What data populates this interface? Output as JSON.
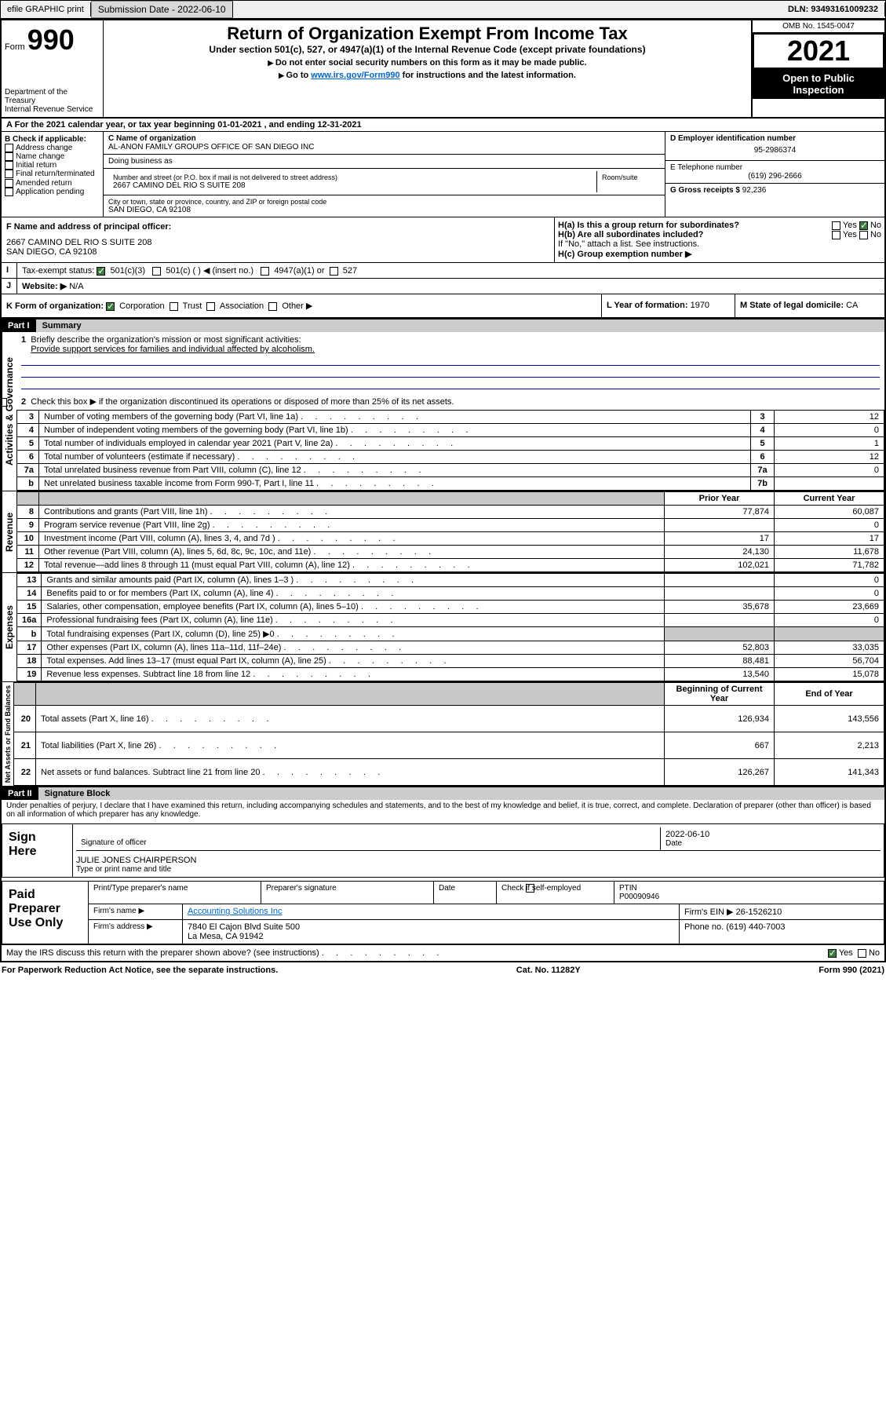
{
  "header": {
    "efile": "efile GRAPHIC print",
    "submission_label": "Submission Date - 2022-06-10",
    "dln_label": "DLN: 93493161009232"
  },
  "form_head": {
    "form_label": "Form",
    "form_number": "990",
    "dept": "Department of the Treasury",
    "irs": "Internal Revenue Service",
    "title": "Return of Organization Exempt From Income Tax",
    "subtitle": "Under section 501(c), 527, or 4947(a)(1) of the Internal Revenue Code (except private foundations)",
    "note1": "Do not enter social security numbers on this form as it may be made public.",
    "note2_pre": "Go to ",
    "note2_link": "www.irs.gov/Form990",
    "note2_post": " for instructions and the latest information.",
    "omb": "OMB No. 1545-0047",
    "year": "2021",
    "open": "Open to Public Inspection"
  },
  "line_a": "For the 2021 calendar year, or tax year beginning 01-01-2021    , and ending 12-31-2021",
  "box_b": {
    "label": "B Check if applicable:",
    "items": [
      "Address change",
      "Name change",
      "Initial return",
      "Final return/terminated",
      "Amended return",
      "Application pending"
    ]
  },
  "box_c": {
    "name_label": "C Name of organization",
    "name": "AL-ANON FAMILY GROUPS OFFICE OF SAN DIEGO INC",
    "dba": "Doing business as",
    "street_label": "Number and street (or P.O. box if mail is not delivered to street address)",
    "room": "Room/suite",
    "street": "2667 CAMINO DEL RIO S SUITE 208",
    "city_label": "City or town, state or province, country, and ZIP or foreign postal code",
    "city": "SAN DIEGO, CA  92108"
  },
  "box_d": {
    "label": "D Employer identification number",
    "value": "95-2986374"
  },
  "box_e": {
    "label": "E Telephone number",
    "value": "(619) 296-2666"
  },
  "box_g": {
    "label": "G Gross receipts $",
    "value": "92,236"
  },
  "box_f": {
    "label": "F  Name and address of principal officer:",
    "addr1": "2667 CAMINO DEL RIO S SUITE 208",
    "addr2": "SAN DIEGO, CA  92108"
  },
  "box_h": {
    "ha": "H(a)  Is this a group return for subordinates?",
    "hb": "H(b)  Are all subordinates included?",
    "hnote": "If \"No,\" attach a list. See instructions.",
    "hc": "H(c)  Group exemption number ▶",
    "yes": "Yes",
    "no": "No"
  },
  "line_i": {
    "label": "Tax-exempt status:",
    "opts": [
      "501(c)(3)",
      "501(c) (  ) ◀ (insert no.)",
      "4947(a)(1) or",
      "527"
    ]
  },
  "line_j": {
    "label": "Website: ▶",
    "value": "N/A"
  },
  "line_k": {
    "label": "K Form of organization:",
    "opts": [
      "Corporation",
      "Trust",
      "Association",
      "Other ▶"
    ]
  },
  "line_l": {
    "label": "L Year of formation:",
    "value": "1970"
  },
  "line_m": {
    "label": "M State of legal domicile:",
    "value": "CA"
  },
  "part1": {
    "header": "Part I",
    "title": "Summary",
    "q1": "Briefly describe the organization's mission or most significant activities:",
    "q1a": "Provide support services for families and individual affected by alcoholism.",
    "q2": "Check this box ▶        if the organization discontinued its operations or disposed of more than 25% of its net assets.",
    "sections": {
      "gov": "Activities & Governance",
      "rev": "Revenue",
      "exp": "Expenses",
      "net": "Net Assets or Fund Balances"
    },
    "headers": {
      "prior": "Prior Year",
      "current": "Current Year",
      "begin": "Beginning of Current Year",
      "end": "End of Year"
    },
    "rows_gov": [
      {
        "n": "3",
        "t": "Number of voting members of the governing body (Part VI, line 1a)",
        "box": "3",
        "v": "12"
      },
      {
        "n": "4",
        "t": "Number of independent voting members of the governing body (Part VI, line 1b)",
        "box": "4",
        "v": "0"
      },
      {
        "n": "5",
        "t": "Total number of individuals employed in calendar year 2021 (Part V, line 2a)",
        "box": "5",
        "v": "1"
      },
      {
        "n": "6",
        "t": "Total number of volunteers (estimate if necessary)",
        "box": "6",
        "v": "12"
      },
      {
        "n": "7a",
        "t": "Total unrelated business revenue from Part VIII, column (C), line 12",
        "box": "7a",
        "v": "0"
      },
      {
        "n": "b",
        "t": "Net unrelated business taxable income from Form 990-T, Part I, line 11",
        "box": "7b",
        "v": ""
      }
    ],
    "rows_rev": [
      {
        "n": "8",
        "t": "Contributions and grants (Part VIII, line 1h)",
        "p": "77,874",
        "c": "60,087"
      },
      {
        "n": "9",
        "t": "Program service revenue (Part VIII, line 2g)",
        "p": "",
        "c": "0"
      },
      {
        "n": "10",
        "t": "Investment income (Part VIII, column (A), lines 3, 4, and 7d )",
        "p": "17",
        "c": "17"
      },
      {
        "n": "11",
        "t": "Other revenue (Part VIII, column (A), lines 5, 6d, 8c, 9c, 10c, and 11e)",
        "p": "24,130",
        "c": "11,678"
      },
      {
        "n": "12",
        "t": "Total revenue—add lines 8 through 11 (must equal Part VIII, column (A), line 12)",
        "p": "102,021",
        "c": "71,782"
      }
    ],
    "rows_exp": [
      {
        "n": "13",
        "t": "Grants and similar amounts paid (Part IX, column (A), lines 1–3 )",
        "p": "",
        "c": "0"
      },
      {
        "n": "14",
        "t": "Benefits paid to or for members (Part IX, column (A), line 4)",
        "p": "",
        "c": "0"
      },
      {
        "n": "15",
        "t": "Salaries, other compensation, employee benefits (Part IX, column (A), lines 5–10)",
        "p": "35,678",
        "c": "23,669"
      },
      {
        "n": "16a",
        "t": "Professional fundraising fees (Part IX, column (A), line 11e)",
        "p": "",
        "c": "0"
      },
      {
        "n": "b",
        "t": "Total fundraising expenses (Part IX, column (D), line 25) ▶0",
        "p": "shade",
        "c": "shade"
      },
      {
        "n": "17",
        "t": "Other expenses (Part IX, column (A), lines 11a–11d, 11f–24e)",
        "p": "52,803",
        "c": "33,035"
      },
      {
        "n": "18",
        "t": "Total expenses. Add lines 13–17 (must equal Part IX, column (A), line 25)",
        "p": "88,481",
        "c": "56,704"
      },
      {
        "n": "19",
        "t": "Revenue less expenses. Subtract line 18 from line 12",
        "p": "13,540",
        "c": "15,078"
      }
    ],
    "rows_net": [
      {
        "n": "20",
        "t": "Total assets (Part X, line 16)",
        "p": "126,934",
        "c": "143,556"
      },
      {
        "n": "21",
        "t": "Total liabilities (Part X, line 26)",
        "p": "667",
        "c": "2,213"
      },
      {
        "n": "22",
        "t": "Net assets or fund balances. Subtract line 21 from line 20",
        "p": "126,267",
        "c": "141,343"
      }
    ]
  },
  "part2": {
    "header": "Part II",
    "title": "Signature Block",
    "decl": "Under penalties of perjury, I declare that I have examined this return, including accompanying schedules and statements, and to the best of my knowledge and belief, it is true, correct, and complete. Declaration of preparer (other than officer) is based on all information of which preparer has any knowledge.",
    "sign_here": "Sign Here",
    "sig_officer": "Signature of officer",
    "date": "Date",
    "sig_date": "2022-06-10",
    "name_title": "JULIE JONES  CHAIRPERSON",
    "type_name": "Type or print name and title",
    "paid": "Paid Preparer Use Only",
    "pt_name": "Print/Type preparer's name",
    "pt_sig": "Preparer's signature",
    "pt_date": "Date",
    "pt_check": "Check         if self-employed",
    "ptin_label": "PTIN",
    "ptin": "P00090946",
    "firm_name_label": "Firm's name     ▶",
    "firm_name": "Accounting Solutions Inc",
    "firm_ein_label": "Firm's EIN ▶",
    "firm_ein": "26-1526210",
    "firm_addr_label": "Firm's address ▶",
    "firm_addr1": "7840 El Cajon Blvd Suite 500",
    "firm_addr2": "La Mesa, CA  91942",
    "phone_label": "Phone no.",
    "phone": "(619) 440-7003",
    "discuss": "May the IRS discuss this return with the preparer shown above? (see instructions)"
  },
  "footer": {
    "left": "For Paperwork Reduction Act Notice, see the separate instructions.",
    "mid": "Cat. No. 11282Y",
    "right": "Form 990 (2021)"
  }
}
